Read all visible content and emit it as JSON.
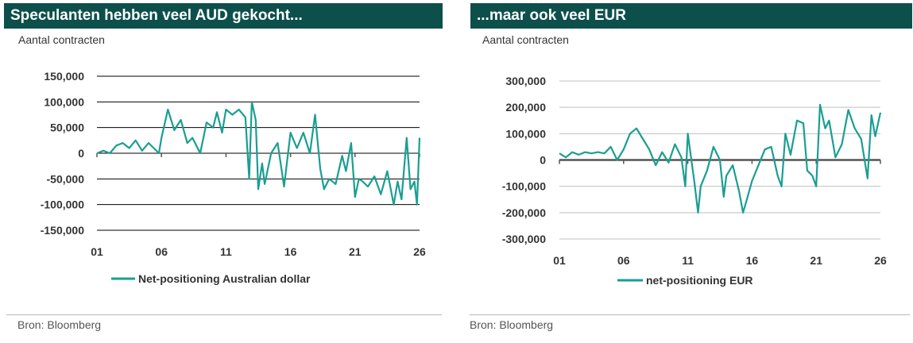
{
  "charts": [
    {
      "title": "Speculanten hebben veel AUD gekocht...",
      "unit_label": "Aantal contracten",
      "source": "Bron: Bloomberg",
      "colors": {
        "header_bg": "#0d4f4b",
        "line": "#1a9e92",
        "grid": "#000000"
      },
      "chart_data": {
        "type": "line",
        "title": "Speculanten hebben veel AUD gekocht...",
        "xlabel": "",
        "ylabel": "Aantal contracten",
        "x_range": [
          2001,
          2026
        ],
        "x_ticks": [
          2001,
          2006,
          2011,
          2016,
          2021,
          2026
        ],
        "x_tick_labels": [
          "01",
          "06",
          "11",
          "16",
          "21",
          "26"
        ],
        "ylim": [
          -150000,
          150000
        ],
        "y_ticks": [
          -150000,
          -100000,
          -50000,
          0,
          50000,
          100000,
          150000
        ],
        "y_tick_labels": [
          "-150,000",
          "-100,000",
          "-50,000",
          "0",
          "50,000",
          "100,000",
          "150,000"
        ],
        "grid": true,
        "legend_position": "bottom",
        "series": [
          {
            "name": "Net-positioning Australian dollar",
            "x": [
              2001.0,
              2001.5,
              2002.0,
              2002.5,
              2003.0,
              2003.5,
              2004.0,
              2004.5,
              2005.0,
              2005.4,
              2005.8,
              2006.0,
              2006.5,
              2007.0,
              2007.5,
              2008.0,
              2008.4,
              2008.8,
              2009.0,
              2009.5,
              2010.0,
              2010.3,
              2010.7,
              2011.0,
              2011.5,
              2012.0,
              2012.5,
              2012.8,
              2013.0,
              2013.3,
              2013.5,
              2013.8,
              2014.0,
              2014.5,
              2015.0,
              2015.5,
              2016.0,
              2016.5,
              2017.0,
              2017.5,
              2017.9,
              2018.3,
              2018.6,
              2019.0,
              2019.5,
              2020.0,
              2020.3,
              2020.7,
              2021.0,
              2021.3,
              2021.6,
              2022.0,
              2022.5,
              2023.0,
              2023.5,
              2024.0,
              2024.3,
              2024.6,
              2025.0,
              2025.3,
              2025.6,
              2025.8,
              2026.0
            ],
            "values": [
              0,
              5000,
              0,
              15000,
              20000,
              10000,
              25000,
              5000,
              20000,
              10000,
              0,
              30000,
              85000,
              45000,
              65000,
              20000,
              30000,
              10000,
              0,
              60000,
              50000,
              80000,
              40000,
              85000,
              75000,
              85000,
              70000,
              -50000,
              100000,
              65000,
              -70000,
              -20000,
              -60000,
              0,
              20000,
              -65000,
              40000,
              10000,
              40000,
              0,
              75000,
              -30000,
              -70000,
              -50000,
              -60000,
              -5000,
              -35000,
              20000,
              -85000,
              -50000,
              -55000,
              -65000,
              -45000,
              -80000,
              -35000,
              -100000,
              -55000,
              -90000,
              30000,
              -70000,
              -55000,
              -100000,
              30000
            ]
          }
        ]
      }
    },
    {
      "title": "...maar ook veel EUR",
      "unit_label": "Aantal contracten",
      "source": "Bron: Bloomberg",
      "colors": {
        "header_bg": "#0d4f4b",
        "line": "#1a9e92",
        "grid": "#bfbfbf",
        "zero_line": "#555555"
      },
      "chart_data": {
        "type": "line",
        "title": "...maar ook veel EUR",
        "xlabel": "",
        "ylabel": "Aantal contracten",
        "x_range": [
          2001,
          2026
        ],
        "x_ticks": [
          2001,
          2006,
          2011,
          2016,
          2021,
          2026
        ],
        "x_tick_labels": [
          "01",
          "06",
          "11",
          "16",
          "21",
          "26"
        ],
        "ylim": [
          -300000,
          300000
        ],
        "y_ticks": [
          -300000,
          -200000,
          -100000,
          0,
          100000,
          200000,
          300000
        ],
        "y_tick_labels": [
          "-300,000",
          "-200,000",
          "-100,000",
          "0",
          "100,000",
          "200,000",
          "300,000"
        ],
        "grid": true,
        "legend_position": "bottom",
        "series": [
          {
            "name": "net-positioning EUR",
            "x": [
              2001.0,
              2001.5,
              2002.0,
              2002.5,
              2003.0,
              2003.5,
              2004.0,
              2004.5,
              2005.0,
              2005.5,
              2006.0,
              2006.5,
              2007.0,
              2007.5,
              2008.0,
              2008.5,
              2009.0,
              2009.5,
              2010.0,
              2010.5,
              2010.8,
              2011.0,
              2011.5,
              2011.8,
              2012.0,
              2012.5,
              2013.0,
              2013.5,
              2013.8,
              2014.0,
              2014.5,
              2014.8,
              2015.0,
              2015.3,
              2015.6,
              2016.0,
              2016.5,
              2017.0,
              2017.5,
              2018.0,
              2018.3,
              2018.6,
              2019.0,
              2019.5,
              2020.0,
              2020.3,
              2020.7,
              2021.0,
              2021.3,
              2021.7,
              2022.0,
              2022.5,
              2023.0,
              2023.5,
              2024.0,
              2024.5,
              2024.8,
              2025.0,
              2025.3,
              2025.6,
              2026.0
            ],
            "values": [
              25000,
              10000,
              30000,
              20000,
              30000,
              25000,
              30000,
              25000,
              50000,
              0,
              40000,
              100000,
              120000,
              80000,
              40000,
              -20000,
              30000,
              -10000,
              60000,
              10000,
              -100000,
              100000,
              -80000,
              -200000,
              -100000,
              -40000,
              50000,
              0,
              -140000,
              -60000,
              -20000,
              -80000,
              -120000,
              -200000,
              -150000,
              -80000,
              -20000,
              40000,
              50000,
              -60000,
              -100000,
              100000,
              20000,
              150000,
              140000,
              -40000,
              -60000,
              -100000,
              210000,
              120000,
              150000,
              10000,
              60000,
              190000,
              120000,
              80000,
              -10000,
              -70000,
              170000,
              90000,
              180000
            ]
          }
        ]
      }
    }
  ]
}
